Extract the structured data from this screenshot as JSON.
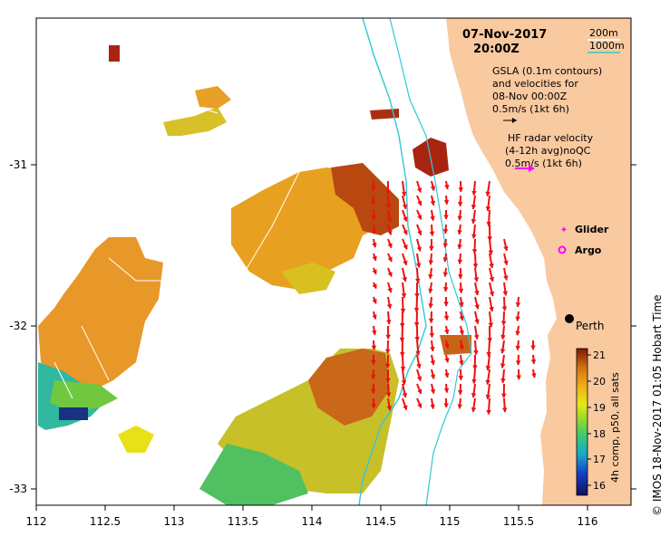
{
  "map": {
    "date": "07-Nov-2017",
    "time": "20:00Z",
    "bathymetry_legend": [
      {
        "label": "200m",
        "color": "#ffffff"
      },
      {
        "label": "1000m",
        "color": "#2ec8d8"
      }
    ],
    "gsla_note": [
      "GSLA (0.1m contours)",
      "and velocities for",
      "08-Nov 00:00Z",
      "0.5m/s (1kt 6h)"
    ],
    "hf_note": [
      "HF radar velocity",
      "(4-12h avg)noQC",
      "0.5m/s (1kt 6h)"
    ],
    "markers": {
      "glider": "Glider",
      "argo": "Argo"
    },
    "place": {
      "name": "Perth",
      "lon": 115.86,
      "lat": -31.95
    },
    "x_ticks": [
      "112",
      "112.5",
      "113",
      "113.5",
      "114",
      "114.5",
      "115",
      "115.5",
      "116"
    ],
    "y_ticks": [
      "-31",
      "-32",
      "-33"
    ],
    "extent": {
      "lon": [
        112,
        116.3
      ],
      "lat": [
        -33.1,
        -30.1
      ]
    },
    "colorbar": {
      "title": "4h comp, p50, all sats",
      "ticks": [
        "21",
        "20",
        "19",
        "18",
        "17",
        "16"
      ],
      "range": [
        15.6,
        21.2
      ]
    },
    "credit": "© IMOS 18-Nov-2017 01:05 Hobart Time",
    "colors": {
      "land": "#f9c9a0",
      "radar_vector": "#ee1111",
      "gsla_vector": "#000000",
      "hf_legend_vector": "#ff00ff",
      "isobath_1000m": "#2ec8d8"
    }
  }
}
